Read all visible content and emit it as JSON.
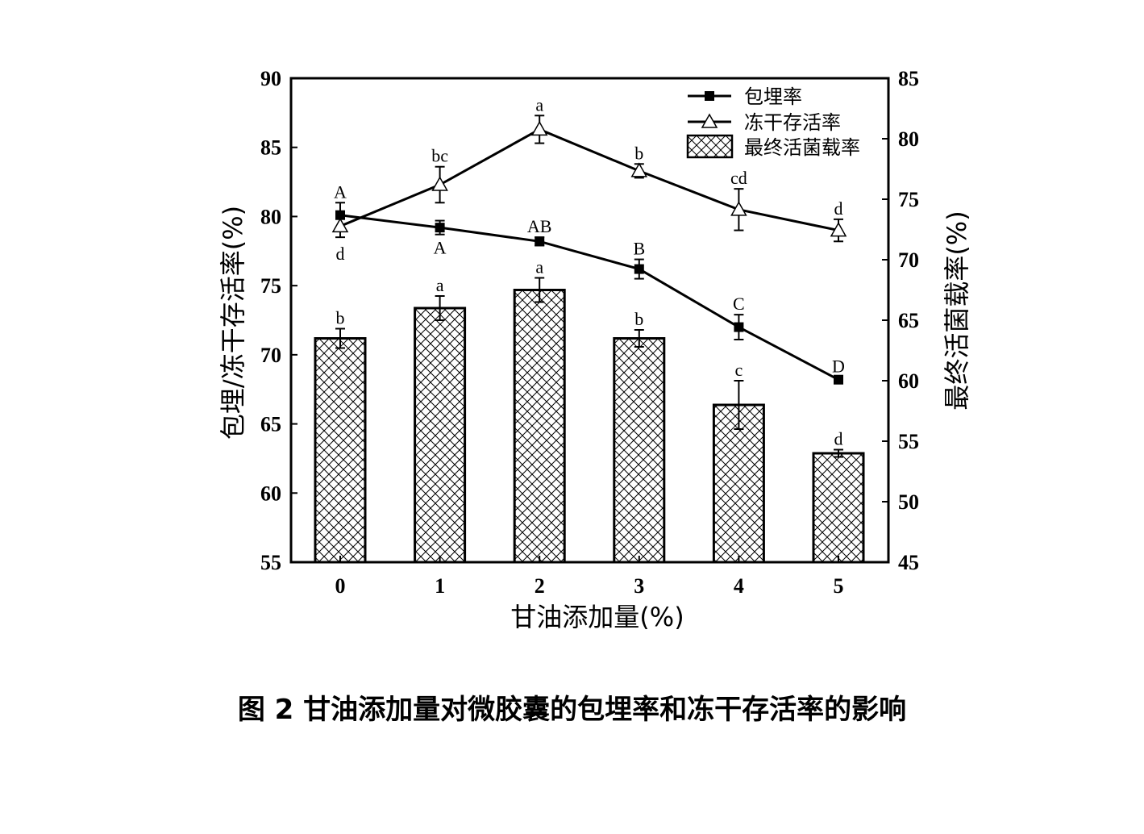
{
  "caption": "图 2   甘油添加量对微胶囊的包埋率和冻干存活率的影响",
  "chart_data": {
    "type": "bar+line",
    "categories": [
      "0",
      "1",
      "2",
      "3",
      "4",
      "5"
    ],
    "xlabel": "甘油添加量(%)",
    "ylabel_left": "包埋/冻干存活率(%)",
    "ylabel_right": "最终活菌载率(%)",
    "ylim_left": [
      55,
      90
    ],
    "ylim_right": [
      45,
      85
    ],
    "yticks_left": [
      55,
      60,
      65,
      70,
      75,
      80,
      85,
      90
    ],
    "yticks_right": [
      45,
      50,
      55,
      60,
      65,
      70,
      75,
      80,
      85
    ],
    "legend_position": "top-right",
    "series": [
      {
        "name": "包埋率",
        "kind": "line",
        "marker": "square",
        "axis": "left",
        "values": [
          80.1,
          79.2,
          78.2,
          76.2,
          72.0,
          68.2
        ],
        "errors": [
          0.9,
          0.5,
          0.3,
          0.7,
          0.9,
          0.2
        ],
        "labels": [
          "A",
          "A",
          "AB",
          "B",
          "C",
          "D"
        ]
      },
      {
        "name": "冻干存活率",
        "kind": "line",
        "marker": "triangle-open",
        "axis": "left",
        "values": [
          79.3,
          82.3,
          86.3,
          83.3,
          80.5,
          79.0
        ],
        "errors": [
          0.8,
          1.3,
          1.0,
          0.5,
          1.5,
          0.8
        ],
        "labels": [
          "d",
          "bc",
          "a",
          "b",
          "cd",
          "d"
        ]
      },
      {
        "name": "最终活菌载率",
        "kind": "bar",
        "pattern": "crosshatch",
        "axis": "right",
        "values": [
          63.5,
          66.0,
          67.5,
          63.5,
          58.0,
          54.0
        ],
        "errors": [
          0.8,
          1.0,
          1.0,
          0.7,
          2.0,
          0.3
        ],
        "labels": [
          "b",
          "a",
          "a",
          "b",
          "c",
          "d"
        ]
      }
    ]
  }
}
